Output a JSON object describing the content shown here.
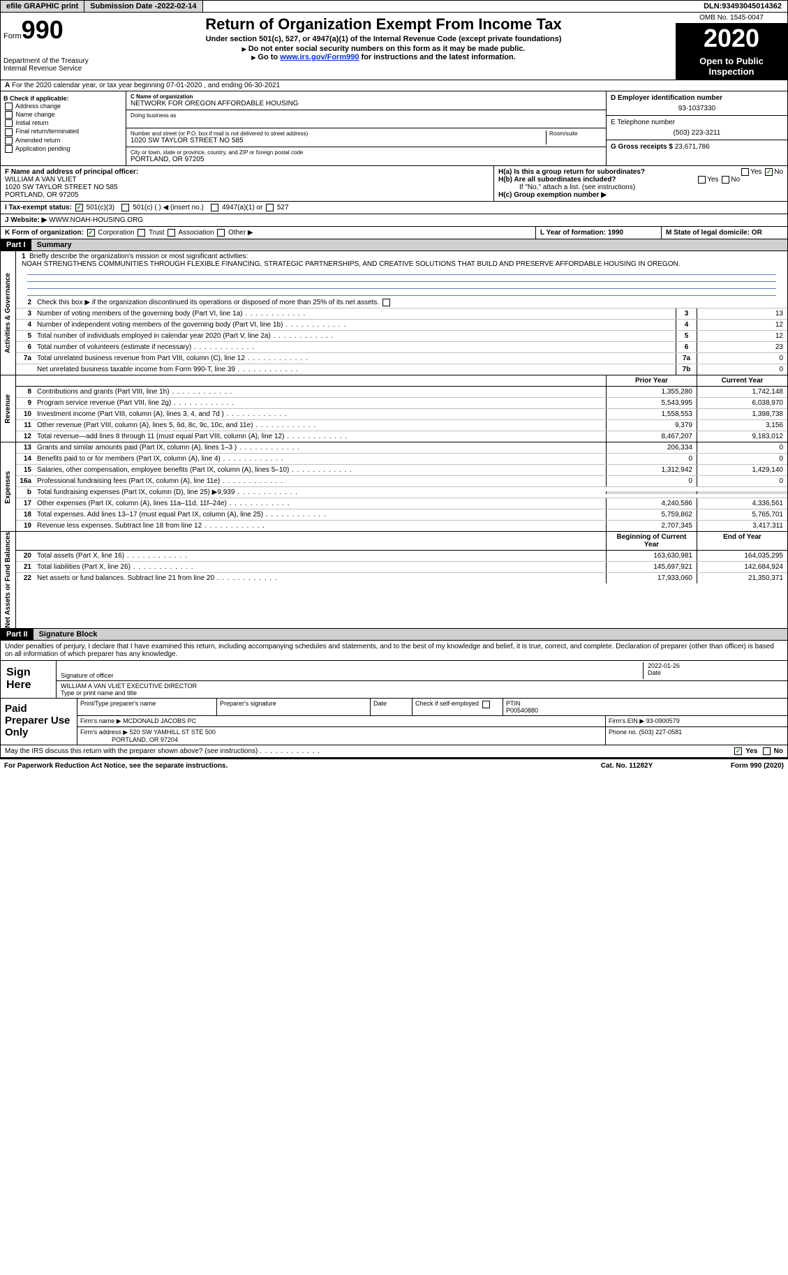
{
  "topbar": {
    "efile": "efile GRAPHIC print",
    "sub_label": "Submission Date - ",
    "sub_date": "2022-02-14",
    "dln_label": "DLN: ",
    "dln": "93493045014362"
  },
  "header": {
    "form_prefix": "Form",
    "form_num": "990",
    "dept": "Department of the Treasury\nInternal Revenue Service",
    "title": "Return of Organization Exempt From Income Tax",
    "sub1": "Under section 501(c), 527, or 4947(a)(1) of the Internal Revenue Code (except private foundations)",
    "sub2": "Do not enter social security numbers on this form as it may be made public.",
    "sub3_pre": "Go to ",
    "sub3_link": "www.irs.gov/Form990",
    "sub3_post": " for instructions and the latest information.",
    "omb": "OMB No. 1545-0047",
    "year": "2020",
    "open": "Open to Public Inspection"
  },
  "row_a": "For the 2020 calendar year, or tax year beginning 07-01-2020   , and ending 06-30-2021",
  "box_b": {
    "label": "B Check if applicable:",
    "items": [
      "Address change",
      "Name change",
      "Initial return",
      "Final return/terminated",
      "Amended return",
      "Application pending"
    ]
  },
  "box_c": {
    "c_label": "C Name of organization",
    "name": "NETWORK FOR OREGON AFFORDABLE HOUSING",
    "dba_label": "Doing business as",
    "addr_label": "Number and street (or P.O. box if mail is not delivered to street address)",
    "room_label": "Room/suite",
    "addr": "1020 SW TAYLOR STREET NO 585",
    "city_label": "City or town, state or province, country, and ZIP or foreign postal code",
    "city": "PORTLAND, OR  97205"
  },
  "box_d": {
    "label": "D Employer identification number",
    "ein": "93-1037330",
    "e_label": "E Telephone number",
    "phone": "(503) 223-3211",
    "g_label": "G Gross receipts $ ",
    "gross": "23,671,786"
  },
  "box_f": {
    "label": "F  Name and address of principal officer:",
    "name": "WILLIAM A VAN VLIET",
    "addr1": "1020 SW TAYLOR STREET NO 585",
    "addr2": "PORTLAND, OR  97205"
  },
  "box_h": {
    "ha": "H(a)  Is this a group return for subordinates?",
    "hb": "H(b)  Are all subordinates included?",
    "hb_note": "If \"No,\" attach a list. (see instructions)",
    "hc": "H(c)  Group exemption number ▶",
    "yes": "Yes",
    "no": "No"
  },
  "row_i": {
    "label": "I   Tax-exempt status:",
    "o1": "501(c)(3)",
    "o2": "501(c) (  ) ◀ (insert no.)",
    "o3": "4947(a)(1) or",
    "o4": "527"
  },
  "row_j": {
    "label": "J   Website: ▶ ",
    "val": "WWW.NOAH-HOUSING.ORG"
  },
  "row_k": {
    "label": "K Form of organization:",
    "o1": "Corporation",
    "o2": "Trust",
    "o3": "Association",
    "o4": "Other ▶"
  },
  "row_lm": {
    "l": "L Year of formation: 1990",
    "m": "M State of legal domicile: OR"
  },
  "part1": {
    "num": "Part I",
    "title": "Summary"
  },
  "summary": {
    "l1": "Briefly describe the organization's mission or most significant activities:",
    "mission": "NOAH STRENGTHENS COMMUNITIES THROUGH FLEXIBLE FINANCING, STRATEGIC PARTNERSHIPS, AND CREATIVE SOLUTIONS THAT BUILD AND PRESERVE AFFORDABLE HOUSING IN OREGON.",
    "l2": "Check this box ▶        if the organization discontinued its operations or disposed of more than 25% of its net assets.",
    "lines_gov": [
      {
        "n": "3",
        "t": "Number of voting members of the governing body (Part VI, line 1a)",
        "b": "3",
        "v": "13"
      },
      {
        "n": "4",
        "t": "Number of independent voting members of the governing body (Part VI, line 1b)",
        "b": "4",
        "v": "12"
      },
      {
        "n": "5",
        "t": "Total number of individuals employed in calendar year 2020 (Part V, line 2a)",
        "b": "5",
        "v": "12"
      },
      {
        "n": "6",
        "t": "Total number of volunteers (estimate if necessary)",
        "b": "6",
        "v": "23"
      },
      {
        "n": "7a",
        "t": "Total unrelated business revenue from Part VIII, column (C), line 12",
        "b": "7a",
        "v": "0"
      },
      {
        "n": "",
        "t": "Net unrelated business taxable income from Form 990-T, line 39",
        "b": "7b",
        "v": "0"
      }
    ],
    "hdr_prior": "Prior Year",
    "hdr_curr": "Current Year",
    "revenue": [
      {
        "n": "8",
        "t": "Contributions and grants (Part VIII, line 1h)",
        "p": "1,355,280",
        "c": "1,742,148"
      },
      {
        "n": "9",
        "t": "Program service revenue (Part VIII, line 2g)",
        "p": "5,543,995",
        "c": "6,038,970"
      },
      {
        "n": "10",
        "t": "Investment income (Part VIII, column (A), lines 3, 4, and 7d )",
        "p": "1,558,553",
        "c": "1,398,738"
      },
      {
        "n": "11",
        "t": "Other revenue (Part VIII, column (A), lines 5, 6d, 8c, 9c, 10c, and 11e)",
        "p": "9,379",
        "c": "3,156"
      },
      {
        "n": "12",
        "t": "Total revenue—add lines 8 through 11 (must equal Part VIII, column (A), line 12)",
        "p": "8,467,207",
        "c": "9,183,012"
      }
    ],
    "expenses": [
      {
        "n": "13",
        "t": "Grants and similar amounts paid (Part IX, column (A), lines 1–3 )",
        "p": "206,334",
        "c": "0"
      },
      {
        "n": "14",
        "t": "Benefits paid to or for members (Part IX, column (A), line 4)",
        "p": "0",
        "c": "0"
      },
      {
        "n": "15",
        "t": "Salaries, other compensation, employee benefits (Part IX, column (A), lines 5–10)",
        "p": "1,312,942",
        "c": "1,429,140"
      },
      {
        "n": "16a",
        "t": "Professional fundraising fees (Part IX, column (A), line 11e)",
        "p": "0",
        "c": "0"
      },
      {
        "n": "b",
        "t": "Total fundraising expenses (Part IX, column (D), line 25) ▶9,939",
        "p": "",
        "c": "",
        "gray": true
      },
      {
        "n": "17",
        "t": "Other expenses (Part IX, column (A), lines 11a–11d, 11f–24e)",
        "p": "4,240,586",
        "c": "4,336,561"
      },
      {
        "n": "18",
        "t": "Total expenses. Add lines 13–17 (must equal Part IX, column (A), line 25)",
        "p": "5,759,862",
        "c": "5,765,701"
      },
      {
        "n": "19",
        "t": "Revenue less expenses. Subtract line 18 from line 12",
        "p": "2,707,345",
        "c": "3,417,311"
      }
    ],
    "hdr_beg": "Beginning of Current Year",
    "hdr_end": "End of Year",
    "netassets": [
      {
        "n": "20",
        "t": "Total assets (Part X, line 16)",
        "p": "163,630,981",
        "c": "164,035,295"
      },
      {
        "n": "21",
        "t": "Total liabilities (Part X, line 26)",
        "p": "145,697,921",
        "c": "142,684,924"
      },
      {
        "n": "22",
        "t": "Net assets or fund balances. Subtract line 21 from line 20",
        "p": "17,933,060",
        "c": "21,350,371"
      }
    ]
  },
  "sides": {
    "gov": "Activities & Governance",
    "rev": "Revenue",
    "exp": "Expenses",
    "net": "Net Assets or Fund Balances"
  },
  "part2": {
    "num": "Part II",
    "title": "Signature Block"
  },
  "penalty": "Under penalties of perjury, I declare that I have examined this return, including accompanying schedules and statements, and to the best of my knowledge and belief, it is true, correct, and complete. Declaration of preparer (other than officer) is based on all information of which preparer has any knowledge.",
  "sign": {
    "here": "Sign Here",
    "sig_label": "Signature of officer",
    "date_label": "Date",
    "date": "2022-01-26",
    "name": "WILLIAM A VAN VLIET EXECUTIVE DIRECTOR",
    "name_label": "Type or print name and title"
  },
  "prep": {
    "label": "Paid Preparer Use Only",
    "r1": {
      "c1": "Print/Type preparer's name",
      "c2": "Preparer's signature",
      "c3": "Date",
      "c4": "Check        if self-employed",
      "c5_l": "PTIN",
      "c5": "P00540880"
    },
    "r2": {
      "c1": "Firm's name    ▶",
      "c1v": "MCDONALD JACOBS PC",
      "c2": "Firm's EIN ▶",
      "c2v": "93-0900579"
    },
    "r3": {
      "c1": "Firm's address ▶",
      "c1v": "520 SW YAMHILL ST STE 500",
      "c1v2": "PORTLAND, OR  97204",
      "c2": "Phone no.",
      "c2v": "(503) 227-0581"
    }
  },
  "discuss": "May the IRS discuss this return with the preparer shown above? (see instructions)",
  "footer": {
    "l": "For Paperwork Reduction Act Notice, see the separate instructions.",
    "m": "Cat. No. 11282Y",
    "r": "Form 990 (2020)"
  }
}
